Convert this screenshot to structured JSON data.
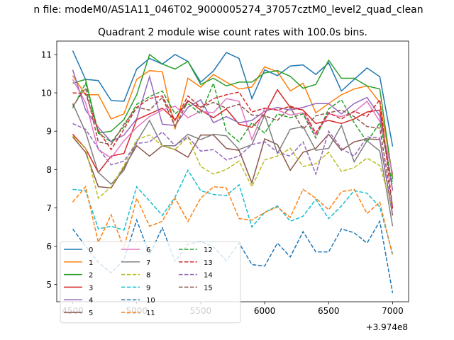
{
  "figure": {
    "suptitle": "n file: modeM0/AS1A11_046T02_9000005274_37057cztM0_level2_quad_clean",
    "title": "Quadrant 2 module wise count rates with 100.0s bins.",
    "offset_text": "+3.974e8"
  },
  "chart_data": {
    "type": "line",
    "title": "Quadrant 2 module wise count rates with 100.0s bins.",
    "x_offset": 397400000,
    "x": [
      4500,
      4600,
      4700,
      4800,
      4900,
      5000,
      5100,
      5200,
      5300,
      5400,
      5500,
      5600,
      5700,
      5800,
      5900,
      6000,
      6100,
      6200,
      6300,
      6400,
      6500,
      6600,
      6700,
      6800,
      6900,
      7000
    ],
    "xlim": [
      4375,
      7125
    ],
    "ylim": [
      4.55,
      11.35
    ],
    "xticks": [
      4500,
      5000,
      5500,
      6000,
      6500,
      7000
    ],
    "yticks": [
      5,
      6,
      7,
      8,
      9,
      10,
      11
    ],
    "grid": false,
    "legend": {
      "position": "lower-left",
      "ncol": 3
    },
    "series": [
      {
        "name": "0",
        "color": "#1f77b4",
        "dash": "solid",
        "values": [
          11.1,
          10.35,
          10.32,
          9.8,
          9.78,
          10.62,
          10.9,
          10.75,
          11.0,
          10.82,
          10.28,
          10.57,
          11.05,
          10.9,
          9.85,
          10.6,
          10.45,
          10.7,
          10.73,
          10.48,
          10.78,
          10.05,
          10.35,
          10.65,
          10.42,
          8.6
        ]
      },
      {
        "name": "1",
        "color": "#ff7f0e",
        "dash": "solid",
        "values": [
          10.45,
          9.95,
          9.95,
          9.32,
          9.45,
          10.35,
          10.58,
          10.55,
          9.05,
          10.38,
          10.15,
          10.48,
          10.28,
          10.1,
          10.15,
          10.68,
          10.55,
          10.05,
          10.25,
          9.48,
          9.72,
          9.95,
          10.1,
          10.18,
          9.75,
          7.85
        ]
      },
      {
        "name": "2",
        "color": "#2ca02c",
        "dash": "solid",
        "values": [
          10.25,
          10.35,
          8.95,
          9.0,
          9.3,
          9.95,
          11.0,
          10.75,
          10.62,
          10.82,
          10.22,
          10.38,
          10.18,
          10.28,
          10.28,
          10.52,
          10.58,
          10.43,
          10.12,
          10.22,
          10.85,
          10.38,
          10.38,
          10.18,
          10.1,
          7.75
        ]
      },
      {
        "name": "3",
        "color": "#d62728",
        "dash": "solid",
        "values": [
          8.92,
          8.55,
          7.92,
          8.35,
          8.42,
          9.3,
          9.45,
          9.6,
          9.3,
          9.8,
          9.55,
          9.35,
          9.58,
          9.18,
          9.1,
          9.45,
          10.08,
          9.62,
          9.55,
          9.2,
          9.28,
          9.2,
          9.32,
          9.5,
          9.55,
          7.45
        ]
      },
      {
        "name": "4",
        "color": "#9467bd",
        "dash": "solid",
        "values": [
          10.6,
          9.55,
          9.1,
          8.72,
          8.9,
          9.32,
          10.42,
          9.18,
          9.15,
          9.62,
          9.82,
          9.22,
          9.38,
          9.22,
          9.28,
          9.52,
          9.62,
          9.55,
          9.62,
          9.72,
          9.72,
          9.45,
          9.72,
          9.88,
          9.4,
          7.45
        ]
      },
      {
        "name": "5",
        "color": "#8c564b",
        "dash": "solid",
        "values": [
          8.85,
          8.45,
          7.55,
          7.52,
          8.05,
          8.62,
          8.35,
          8.62,
          8.52,
          8.32,
          8.9,
          8.9,
          8.55,
          8.5,
          7.65,
          8.8,
          8.65,
          7.98,
          8.45,
          8.55,
          8.92,
          8.5,
          8.72,
          8.8,
          8.78,
          6.8
        ]
      },
      {
        "name": "6",
        "color": "#e377c2",
        "dash": "solid",
        "values": [
          10.35,
          9.75,
          8.52,
          8.3,
          8.75,
          9.1,
          9.38,
          9.55,
          9.65,
          9.35,
          9.52,
          9.48,
          9.85,
          9.78,
          8.78,
          9.6,
          9.55,
          9.42,
          9.48,
          8.9,
          9.45,
          9.38,
          9.5,
          9.78,
          9.25,
          7.9
        ]
      },
      {
        "name": "7",
        "color": "#7f7f7f",
        "dash": "solid",
        "values": [
          9.72,
          8.98,
          7.92,
          7.62,
          7.98,
          8.72,
          9.28,
          8.62,
          8.62,
          8.92,
          8.78,
          8.92,
          8.88,
          8.52,
          8.65,
          9.42,
          8.42,
          9.05,
          9.12,
          8.5,
          8.55,
          9.15,
          8.2,
          8.75,
          8.48,
          6.52
        ]
      },
      {
        "name": "8",
        "color": "#bcbd22",
        "dash": "dashed",
        "values": [
          8.88,
          8.55,
          7.25,
          7.55,
          8.1,
          8.78,
          8.9,
          8.62,
          8.52,
          8.85,
          8.08,
          7.88,
          8.0,
          8.22,
          7.55,
          8.25,
          8.35,
          8.55,
          8.08,
          8.15,
          8.45,
          7.95,
          8.05,
          8.3,
          8.1,
          6.98
        ]
      },
      {
        "name": "9",
        "color": "#17becf",
        "dash": "dashed",
        "values": [
          7.48,
          7.45,
          6.45,
          6.52,
          6.42,
          7.55,
          7.18,
          6.8,
          7.28,
          7.98,
          7.45,
          7.35,
          7.32,
          7.6,
          6.5,
          6.88,
          7.05,
          6.65,
          6.78,
          7.22,
          6.72,
          7.05,
          7.45,
          7.38,
          7.02,
          5.8
        ]
      },
      {
        "name": "10",
        "color": "#1f77b4",
        "dash": "dashed",
        "values": [
          6.45,
          6.0,
          5.58,
          5.3,
          5.65,
          6.68,
          5.78,
          6.48,
          5.6,
          6.05,
          6.12,
          5.98,
          5.62,
          6.08,
          5.52,
          5.48,
          6.08,
          5.72,
          6.38,
          5.85,
          5.85,
          6.45,
          6.35,
          6.08,
          6.65,
          4.78
        ]
      },
      {
        "name": "11",
        "color": "#ff7f0e",
        "dash": "dashed",
        "values": [
          7.15,
          7.55,
          6.1,
          6.82,
          5.95,
          7.25,
          6.52,
          6.65,
          7.25,
          6.65,
          7.25,
          7.55,
          7.52,
          6.72,
          6.68,
          6.88,
          7.02,
          6.75,
          7.48,
          7.25,
          6.95,
          7.42,
          7.48,
          6.85,
          7.15,
          5.75
        ]
      },
      {
        "name": "12",
        "color": "#2ca02c",
        "dash": "dashed",
        "values": [
          9.6,
          10.25,
          8.95,
          8.72,
          9.12,
          9.7,
          9.9,
          10.05,
          9.45,
          9.72,
          9.45,
          10.25,
          9.0,
          8.72,
          9.22,
          8.95,
          9.45,
          9.35,
          9.45,
          8.82,
          9.58,
          9.82,
          9.22,
          8.72,
          9.22,
          7.62
        ]
      },
      {
        "name": "13",
        "color": "#d62728",
        "dash": "dashed",
        "values": [
          10.0,
          9.98,
          9.02,
          8.52,
          9.05,
          9.62,
          9.85,
          9.92,
          9.28,
          9.92,
          9.62,
          9.85,
          9.95,
          10.02,
          9.5,
          9.6,
          9.55,
          9.65,
          9.55,
          8.95,
          9.48,
          9.32,
          9.52,
          9.38,
          9.82,
          6.98
        ]
      },
      {
        "name": "14",
        "color": "#9467bd",
        "dash": "dashed",
        "values": [
          9.2,
          9.05,
          8.55,
          8.12,
          8.22,
          8.68,
          8.72,
          8.98,
          8.62,
          8.85,
          8.48,
          8.52,
          8.25,
          8.35,
          8.65,
          8.72,
          8.45,
          8.35,
          8.72,
          7.88,
          9.0,
          8.55,
          8.35,
          8.85,
          8.82,
          6.82
        ]
      },
      {
        "name": "15",
        "color": "#8c564b",
        "dash": "dashed",
        "values": [
          9.65,
          10.12,
          8.72,
          8.65,
          9.18,
          9.62,
          9.55,
          9.88,
          9.12,
          9.78,
          9.62,
          9.75,
          9.6,
          9.7,
          9.42,
          9.4,
          9.28,
          9.62,
          9.05,
          9.4,
          9.48,
          9.55,
          9.38,
          9.12,
          9.08,
          7.02
        ]
      }
    ]
  }
}
